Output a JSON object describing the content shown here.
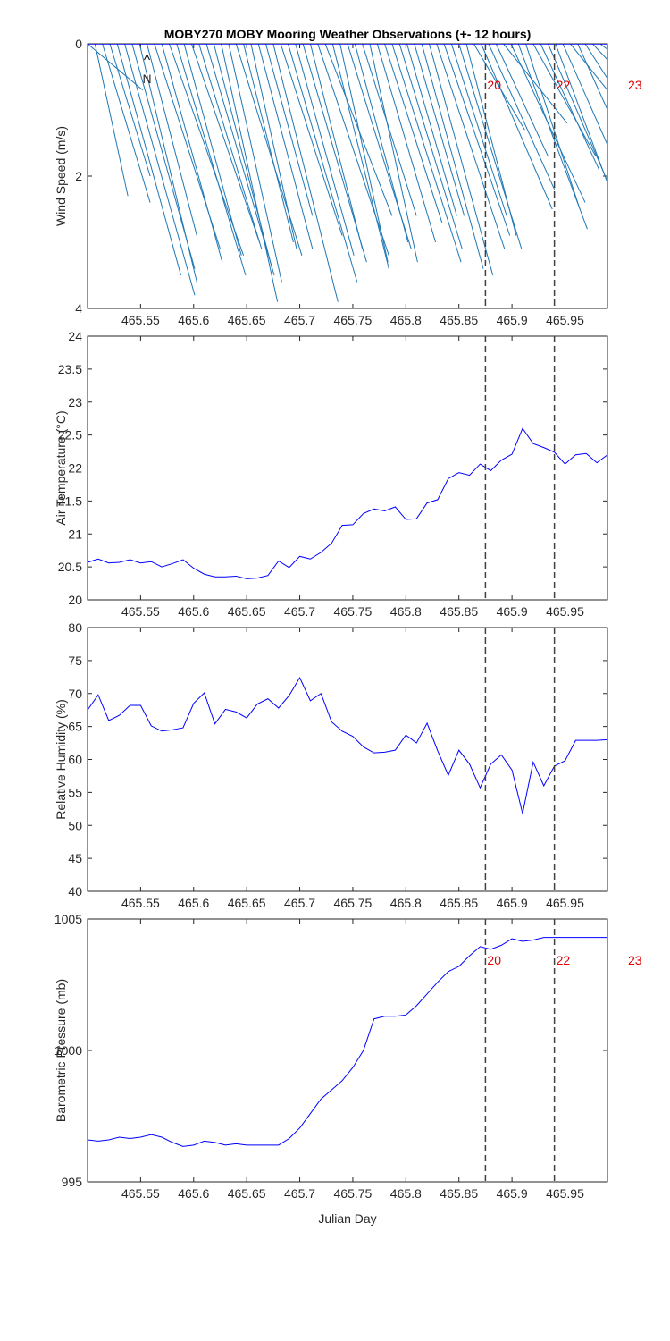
{
  "figure_title": "MOBY270 MOBY Mooring Weather Observations (+- 12 hours)",
  "x_axis_label": "Julian Day",
  "x_ticks": [
    465.55,
    465.6,
    465.65,
    465.7,
    465.75,
    465.8,
    465.85,
    465.9,
    465.95
  ],
  "x_tick_labels": [
    "465.55",
    "465.6",
    "465.65",
    "465.7",
    "465.75",
    "465.8",
    "465.85",
    "465.9",
    "465.95"
  ],
  "xlim": [
    465.5,
    465.99
  ],
  "north_label": "N",
  "colors": {
    "line": "#0000ff",
    "stick": "#1f77b4",
    "marker_text": "#e00000",
    "marker_line": "#404040"
  },
  "event_markers": [
    {
      "x": 465.875,
      "label": "20"
    },
    {
      "x": 465.94,
      "label": "22"
    },
    {
      "x": 466.02,
      "label": "23"
    }
  ],
  "chart_data": [
    {
      "type": "wind-stick",
      "ylabel": "Wind Speed (m/s)",
      "ylim": [
        0,
        4
      ],
      "y_ticks": [
        0,
        2,
        4
      ],
      "y_tick_labels": [
        "0",
        "2",
        "4"
      ],
      "y_reversed": true,
      "markers_shown": true,
      "x": [
        465.5,
        465.507,
        465.514,
        465.521,
        465.528,
        465.535,
        465.542,
        465.549,
        465.556,
        465.563,
        465.57,
        465.577,
        465.584,
        465.591,
        465.598,
        465.605,
        465.612,
        465.619,
        465.626,
        465.633,
        465.64,
        465.647,
        465.654,
        465.661,
        465.668,
        465.675,
        465.682,
        465.689,
        465.696,
        465.703,
        465.71,
        465.717,
        465.724,
        465.731,
        465.738,
        465.745,
        465.752,
        465.759,
        465.766,
        465.773,
        465.78,
        465.787,
        465.794,
        465.801,
        465.808,
        465.815,
        465.822,
        465.829,
        465.836,
        465.843,
        465.85,
        465.857,
        465.864,
        465.871,
        465.878,
        465.885,
        465.892,
        465.899,
        465.906,
        465.913,
        465.92,
        465.927,
        465.934,
        465.941,
        465.948,
        465.955,
        465.962,
        465.969,
        465.976,
        465.983,
        465.99
      ],
      "u": [
        0.052,
        0.031,
        0.045,
        0.038,
        0.06,
        0.066,
        0.059,
        0.054,
        0.047,
        0.062,
        0.057,
        0.07,
        0.065,
        0.054,
        0.064,
        0.059,
        0.064,
        0.055,
        0.053,
        0.05,
        0.062,
        0.047,
        0.043,
        0.051,
        0.044,
        0.061,
        0.058,
        0.065,
        0.055,
        0.06,
        0.049,
        0.067,
        0.063,
        0.053,
        0.045,
        0.06,
        0.05,
        0.051,
        0.045,
        0.055,
        0.054,
        0.065,
        0.059,
        0.047,
        0.047,
        0.058,
        0.06,
        0.064,
        0.062,
        0.052,
        0.059,
        0.047,
        0.048,
        0.067,
        0.062,
        0.049,
        0.06,
        0.07,
        0.065,
        0.051,
        0.059,
        0.055,
        0.062,
        0.063,
        0.066,
        0.055,
        0.059,
        0.06,
        0.058,
        0.05,
        0.041
      ],
      "v": [
        -0.7,
        -2.3,
        -2.4,
        -2.0,
        -3.5,
        -3.8,
        -3.4,
        -3.6,
        -2.9,
        -3.1,
        -3.3,
        -3.2,
        -3.5,
        -3.2,
        -3.0,
        -3.1,
        -3.5,
        -3.4,
        -3.9,
        -3.6,
        -3.2,
        -3.0,
        -3.1,
        -3.1,
        -2.6,
        -3.9,
        -2.9,
        -3.6,
        -3.2,
        -3.3,
        -3.1,
        -3.2,
        -2.6,
        -3.4,
        -3.3,
        -3.1,
        -3.0,
        -2.6,
        -3.3,
        -3.0,
        -2.7,
        -3.3,
        -3.1,
        -2.6,
        -2.6,
        -3.4,
        -3.5,
        -3.1,
        -2.9,
        -2.6,
        -3.1,
        -2.9,
        -1.3,
        -2.5,
        -2.2,
        -1.7,
        -1.2,
        -2.4,
        -2.8,
        -2.5,
        -1.7,
        -1.9,
        -2.3,
        -2.7,
        -2.4,
        -1.1,
        -2.1,
        -1.5,
        -1.0,
        -0.6,
        -0.7
      ]
    },
    {
      "type": "line",
      "ylabel": "Air Temperature (°C)",
      "ylim": [
        20,
        24
      ],
      "y_ticks": [
        20,
        20.5,
        21,
        21.5,
        22,
        22.5,
        23,
        23.5,
        24
      ],
      "y_tick_labels": [
        "20",
        "20.5",
        "21",
        "21.5",
        "22",
        "22.5",
        "23",
        "23.5",
        "24"
      ],
      "markers_shown": false,
      "x": [
        465.5,
        465.51,
        465.52,
        465.53,
        465.54,
        465.55,
        465.56,
        465.57,
        465.58,
        465.59,
        465.6,
        465.61,
        465.62,
        465.63,
        465.64,
        465.65,
        465.66,
        465.67,
        465.68,
        465.69,
        465.7,
        465.71,
        465.72,
        465.73,
        465.74,
        465.75,
        465.76,
        465.77,
        465.78,
        465.79,
        465.8,
        465.81,
        465.82,
        465.83,
        465.84,
        465.85,
        465.86,
        465.87,
        465.88,
        465.89,
        465.9,
        465.91,
        465.92,
        465.93,
        465.94,
        465.95,
        465.96,
        465.97,
        465.98,
        465.99
      ],
      "y": [
        20.57,
        20.62,
        20.56,
        20.57,
        20.61,
        20.56,
        20.58,
        20.5,
        20.55,
        20.61,
        20.48,
        20.39,
        20.35,
        20.35,
        20.36,
        20.32,
        20.33,
        20.37,
        20.59,
        20.49,
        20.66,
        20.62,
        20.72,
        20.86,
        21.13,
        21.14,
        21.31,
        21.38,
        21.35,
        21.41,
        21.22,
        21.23,
        21.47,
        21.52,
        21.84,
        21.93,
        21.89,
        22.06,
        21.96,
        22.12,
        22.21,
        22.6,
        22.37,
        22.31,
        22.24,
        22.06,
        22.2,
        22.22,
        22.08,
        22.2
      ]
    },
    {
      "type": "line",
      "ylabel": "Relative Humidity (%)",
      "ylim": [
        40,
        80
      ],
      "y_ticks": [
        40,
        45,
        50,
        55,
        60,
        65,
        70,
        75,
        80
      ],
      "y_tick_labels": [
        "40",
        "45",
        "50",
        "55",
        "60",
        "65",
        "70",
        "75",
        "80"
      ],
      "markers_shown": false,
      "x": [
        465.5,
        465.51,
        465.52,
        465.53,
        465.54,
        465.55,
        465.56,
        465.57,
        465.58,
        465.59,
        465.6,
        465.61,
        465.62,
        465.63,
        465.64,
        465.65,
        465.66,
        465.67,
        465.68,
        465.69,
        465.7,
        465.71,
        465.72,
        465.73,
        465.74,
        465.75,
        465.76,
        465.77,
        465.78,
        465.79,
        465.8,
        465.81,
        465.82,
        465.83,
        465.84,
        465.85,
        465.86,
        465.87,
        465.88,
        465.89,
        465.9,
        465.91,
        465.92,
        465.93,
        465.94,
        465.95,
        465.96,
        465.97,
        465.98,
        465.99
      ],
      "y": [
        67.5,
        69.8,
        65.9,
        66.7,
        68.2,
        68.2,
        65.1,
        64.3,
        64.5,
        64.8,
        68.5,
        70.1,
        65.4,
        67.6,
        67.2,
        66.3,
        68.4,
        69.2,
        67.8,
        69.7,
        72.4,
        68.9,
        70.0,
        65.7,
        64.3,
        63.5,
        61.9,
        61.0,
        61.1,
        61.4,
        63.7,
        62.5,
        65.5,
        61.3,
        57.6,
        61.4,
        59.3,
        55.7,
        59.3,
        60.7,
        58.4,
        51.8,
        59.6,
        56.0,
        59.0,
        59.8,
        62.9,
        62.9,
        62.9,
        63.0
      ]
    },
    {
      "type": "line",
      "ylabel": "Barometric Pressure (mb)",
      "xlabel": "Julian Day",
      "ylim": [
        995,
        1005
      ],
      "y_ticks": [
        995,
        1000,
        1005
      ],
      "y_tick_labels": [
        "995",
        "1000",
        "1005"
      ],
      "markers_shown": true,
      "x": [
        465.5,
        465.51,
        465.52,
        465.53,
        465.54,
        465.55,
        465.56,
        465.57,
        465.58,
        465.59,
        465.6,
        465.61,
        465.62,
        465.63,
        465.64,
        465.65,
        465.66,
        465.67,
        465.68,
        465.69,
        465.7,
        465.71,
        465.72,
        465.73,
        465.74,
        465.75,
        465.76,
        465.77,
        465.78,
        465.79,
        465.8,
        465.81,
        465.82,
        465.83,
        465.84,
        465.85,
        465.86,
        465.87,
        465.88,
        465.89,
        465.9,
        465.91,
        465.92,
        465.93,
        465.94,
        465.95,
        465.96,
        465.97,
        465.98,
        465.99
      ],
      "y": [
        996.6,
        996.55,
        996.6,
        996.7,
        996.65,
        996.7,
        996.8,
        996.7,
        996.5,
        996.35,
        996.4,
        996.55,
        996.5,
        996.4,
        996.45,
        996.4,
        996.4,
        996.4,
        996.4,
        996.65,
        997.05,
        997.6,
        998.15,
        998.5,
        998.85,
        999.35,
        1000.0,
        1001.2,
        1001.3,
        1001.3,
        1001.35,
        1001.7,
        1002.15,
        1002.6,
        1003.0,
        1003.2,
        1003.6,
        1003.95,
        1003.85,
        1004.0,
        1004.25,
        1004.15,
        1004.2,
        1004.3,
        1004.3,
        1004.3,
        1004.3,
        1004.3,
        1004.3,
        1004.3
      ]
    }
  ]
}
